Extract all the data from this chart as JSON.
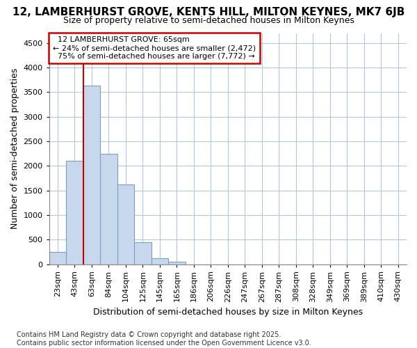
{
  "title_line1": "12, LAMBERHURST GROVE, KENTS HILL, MILTON KEYNES, MK7 6JB",
  "title_line2": "Size of property relative to semi-detached houses in Milton Keynes",
  "xlabel": "Distribution of semi-detached houses by size in Milton Keynes",
  "ylabel": "Number of semi-detached properties",
  "footnote": "Contains HM Land Registry data © Crown copyright and database right 2025.\nContains public sector information licensed under the Open Government Licence v3.0.",
  "categories": [
    "23sqm",
    "43sqm",
    "63sqm",
    "84sqm",
    "104sqm",
    "125sqm",
    "145sqm",
    "165sqm",
    "186sqm",
    "206sqm",
    "226sqm",
    "247sqm",
    "267sqm",
    "287sqm",
    "308sqm",
    "328sqm",
    "349sqm",
    "369sqm",
    "389sqm",
    "410sqm",
    "430sqm"
  ],
  "values": [
    250,
    2100,
    3625,
    2250,
    1625,
    450,
    115,
    55,
    0,
    0,
    0,
    0,
    0,
    0,
    0,
    0,
    0,
    0,
    0,
    0,
    0
  ],
  "bar_color": "#c8d8ec",
  "bar_edge_color": "#7aa0c0",
  "property_label": "12 LAMBERHURST GROVE: 65sqm",
  "pct_smaller": 24,
  "n_smaller": 2472,
  "pct_larger": 75,
  "n_larger": 7772,
  "vline_color": "#cc0000",
  "annotation_box_facecolor": "#ffffff",
  "annotation_box_edgecolor": "#cc0000",
  "grid_color": "#b0c8e0",
  "background_color": "#ffffff",
  "ylim": [
    0,
    4700
  ],
  "yticks": [
    0,
    500,
    1000,
    1500,
    2000,
    2500,
    3000,
    3500,
    4000,
    4500
  ],
  "title_fontsize": 11,
  "subtitle_fontsize": 9,
  "ylabel_fontsize": 9,
  "xlabel_fontsize": 9,
  "tick_fontsize": 8,
  "annotation_fontsize": 8,
  "footnote_fontsize": 7
}
